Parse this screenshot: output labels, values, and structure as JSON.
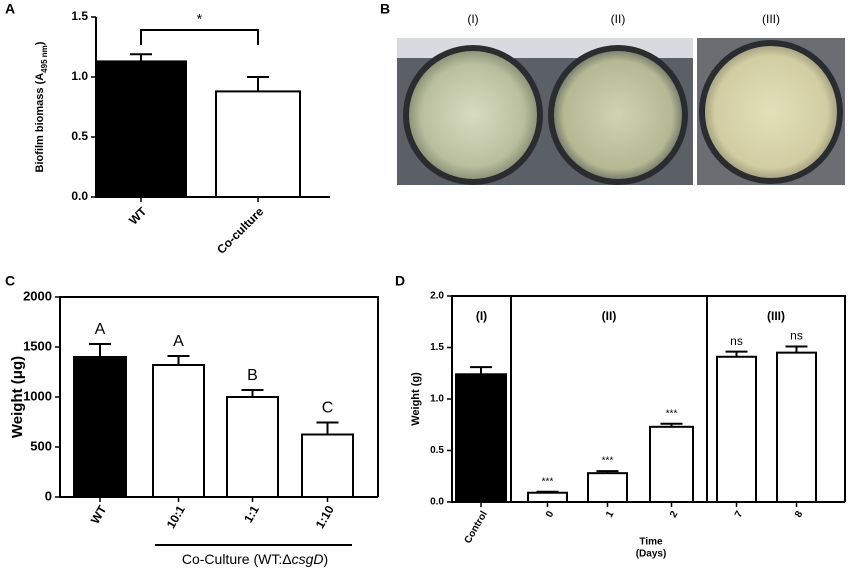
{
  "chart_data": [
    {
      "type": "bar",
      "panel": "A",
      "y_label": [
        "Biofilm biomass (A",
        "495 nm",
        ")"
      ],
      "categories": [
        "WT",
        "Co-culture"
      ],
      "values": [
        1.13,
        0.88
      ],
      "errors": [
        0.06,
        0.12
      ],
      "colors": [
        "#000000",
        "#ffffff"
      ],
      "annotation": "*",
      "ylim": [
        0,
        1.5
      ],
      "yticks": [
        {
          "value": 0,
          "label": "0.0"
        },
        {
          "value": 0.5,
          "label": "0.5"
        },
        {
          "value": 1,
          "label": "1.0"
        },
        {
          "value": 1.5,
          "label": "1.5"
        }
      ]
    },
    {
      "type": "bar",
      "panel": "C",
      "y_label": [
        "Weight (μg)"
      ],
      "categories": [
        "WT",
        "10:1",
        "1:1",
        "1:10"
      ],
      "values": [
        1400,
        1320,
        1000,
        625
      ],
      "errors": [
        130,
        90,
        70,
        120
      ],
      "colors": [
        "#000000",
        "#ffffff",
        "#ffffff",
        "#ffffff"
      ],
      "letters": [
        "A",
        "A",
        "B",
        "C"
      ],
      "group_label": [
        "Co-Culture (WT:Δ",
        "csgD",
        ")"
      ],
      "ylim": [
        0,
        2000
      ],
      "yticks": [
        0,
        500,
        1000,
        1500,
        2000
      ]
    },
    {
      "type": "bar",
      "panel": "D",
      "y_label": [
        "Weight (g)"
      ],
      "x_label": [
        "Time",
        "(Days)"
      ],
      "categories": [
        "Control",
        "0",
        "1",
        "2",
        "7",
        "8"
      ],
      "values": [
        1.24,
        0.09,
        0.28,
        0.73,
        1.41,
        1.45
      ],
      "errors": [
        0.07,
        0.01,
        0.02,
        0.03,
        0.05,
        0.06
      ],
      "colors": [
        "#000000",
        "#ffffff",
        "#ffffff",
        "#ffffff",
        "#ffffff",
        "#ffffff"
      ],
      "annotations": [
        null,
        "***",
        "***",
        "***",
        "ns",
        "ns"
      ],
      "regions": [
        "(I)",
        "(II)",
        "(III)"
      ],
      "ylim": [
        0,
        2
      ],
      "yticks": [
        {
          "value": 0,
          "label": "0.0"
        },
        {
          "value": 0.5,
          "label": "0.5"
        },
        {
          "value": 1,
          "label": "1.0"
        },
        {
          "value": 1.5,
          "label": "1.5"
        },
        {
          "value": 2,
          "label": "2.0"
        }
      ]
    }
  ],
  "panel_b": {
    "panel": "B",
    "labels": [
      "(I)",
      "(II)",
      "(III)"
    ]
  }
}
